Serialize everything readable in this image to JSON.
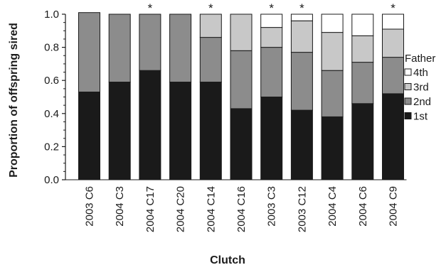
{
  "chart_data": {
    "type": "bar",
    "stacked": true,
    "xlabel": "Clutch",
    "ylabel": "Proportion of offspring sired",
    "ylim": [
      0,
      1.0
    ],
    "yticks": [
      "0.0",
      "0.2",
      "0.4",
      "0.6",
      "0.8",
      "1.0"
    ],
    "grid": false,
    "legend_placement": "right",
    "legend_title": "Father",
    "categories": [
      "2003 C6",
      "2004 C3",
      "2004 C17",
      "2004 C20",
      "2004 C14",
      "2004 C16",
      "2003 C3",
      "2003 C12",
      "2004 C4",
      "2004 C6",
      "2004 C9"
    ],
    "significance_marks": [
      "",
      "",
      "*",
      "",
      "*",
      "",
      "*",
      "*",
      "",
      "",
      "*"
    ],
    "series": [
      {
        "name": "1st",
        "color": "#1a1a1a",
        "values": [
          0.53,
          0.59,
          0.66,
          0.59,
          0.59,
          0.43,
          0.5,
          0.42,
          0.38,
          0.46,
          0.52
        ]
      },
      {
        "name": "2nd",
        "color": "#8c8c8c",
        "values": [
          0.48,
          0.41,
          0.34,
          0.41,
          0.27,
          0.35,
          0.3,
          0.35,
          0.28,
          0.25,
          0.22
        ]
      },
      {
        "name": "3rd",
        "color": "#c8c8c8",
        "values": [
          0.0,
          0.0,
          0.0,
          0.0,
          0.14,
          0.22,
          0.12,
          0.19,
          0.23,
          0.16,
          0.17
        ]
      },
      {
        "name": "4th",
        "color": "#ffffff",
        "values": [
          0.0,
          0.0,
          0.0,
          0.0,
          0.0,
          0.0,
          0.08,
          0.04,
          0.11,
          0.13,
          0.09
        ]
      }
    ]
  }
}
